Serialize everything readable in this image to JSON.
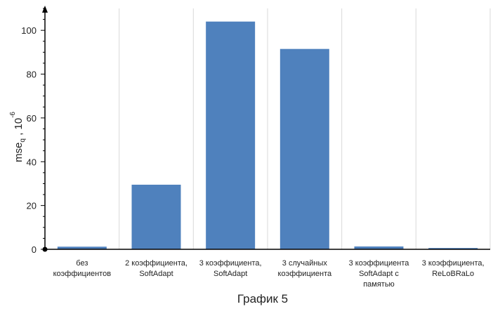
{
  "chart_data": {
    "type": "bar",
    "title": "График 5",
    "ylabel": {
      "base": "mse",
      "subscript": "q",
      "sep": " , ",
      "unit_base": "10",
      "unit_exp": "-6"
    },
    "categories": [
      [
        "без",
        "коэффициентов"
      ],
      [
        "2 коэффициента,",
        "SoftAdapt"
      ],
      [
        "3 коэффициента,",
        "SoftAdapt"
      ],
      [
        "3 случайных",
        "коэффициента"
      ],
      [
        "3 коэффициента",
        "SoftAdapt с",
        "памятью"
      ],
      [
        "3 коэффициента,",
        "ReLoBRaLo"
      ]
    ],
    "values": [
      1.2,
      29.5,
      104,
      91.5,
      1.3,
      0.6
    ],
    "ylim": [
      0,
      110
    ],
    "yticks": [
      0,
      20,
      40,
      60,
      80,
      100
    ],
    "grid": "vertical",
    "bar_color": "#4f81bd"
  }
}
